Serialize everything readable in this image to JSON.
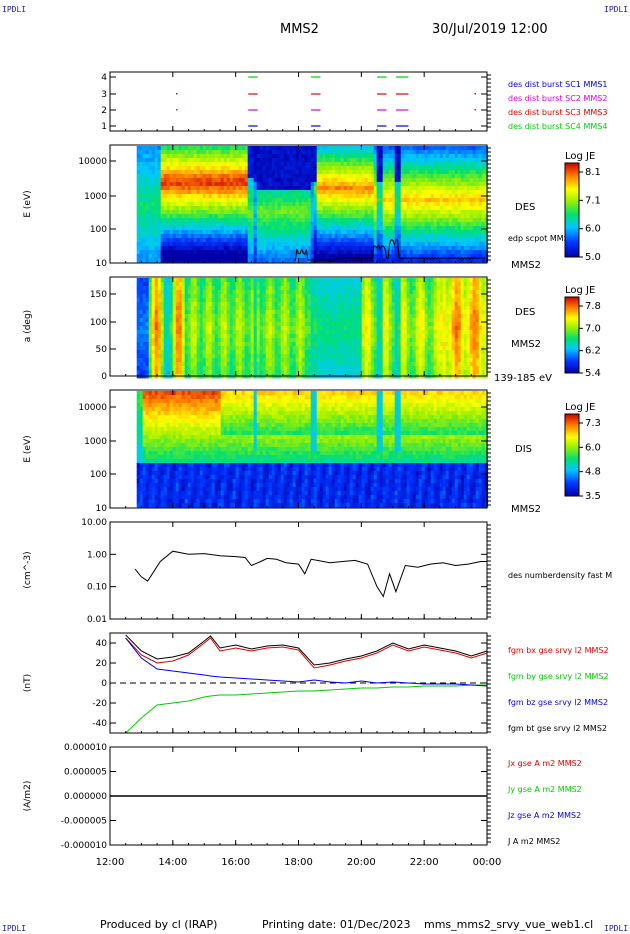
{
  "corner_label": "IPDLI",
  "header": {
    "title": "MMS2",
    "datetime": "30/Jul/2019 12:00"
  },
  "footer": {
    "produced": "Produced by cl (IRAP)",
    "printing": "Printing date: 01/Dec/2023",
    "file": "mms_mms2_srvy_vue_web1.cl"
  },
  "colors": {
    "black": "#000000",
    "red": "#e00000",
    "green": "#00cc00",
    "blue": "#0000ee",
    "magenta": "#e000e0"
  },
  "chart_data": [
    {
      "type": "scatter",
      "panel": "burst",
      "yticks": [
        "4",
        "3",
        "2",
        "1"
      ],
      "legend": [
        {
          "label": "des dist burst SC1 MMS1",
          "color": "#0000ee"
        },
        {
          "label": "des dist burst SC2 MMS2",
          "color": "#e000e0"
        },
        {
          "label": "des dist burst SC3 MMS3",
          "color": "#e00000"
        },
        {
          "label": "des dist burst SC4 MMS4",
          "color": "#00cc00"
        }
      ],
      "segments_hours": [
        [
          16.4,
          16.7
        ],
        [
          18.4,
          18.7
        ],
        [
          20.5,
          20.8
        ],
        [
          21.1,
          21.5
        ]
      ],
      "dots_hours": [
        14.1,
        23.6
      ]
    },
    {
      "type": "heatmap",
      "panel": "des_energy",
      "ylabel": "E (eV)",
      "yticks": [
        "10000",
        "1000",
        "100",
        "10"
      ],
      "instrument": "DES",
      "note": "edp scpot MMS2",
      "spacecraft": "MMS2",
      "colorbar": {
        "title": "Log JE",
        "ticks": [
          "8.1",
          "7.1",
          "6.0",
          "5.0"
        ]
      }
    },
    {
      "type": "heatmap",
      "panel": "des_pitch",
      "ylabel": "a (deg)",
      "yticks": [
        "150",
        "100",
        "50",
        "0"
      ],
      "instrument": "DES",
      "spacecraft": "MMS2",
      "energy_range": "139-185 eV",
      "colorbar": {
        "title": "Log JE",
        "ticks": [
          "7.8",
          "7.0",
          "6.2",
          "5.4"
        ]
      }
    },
    {
      "type": "heatmap",
      "panel": "dis_energy",
      "ylabel": "E (eV)",
      "yticks": [
        "10000",
        "1000",
        "100",
        "10"
      ],
      "instrument": "DIS",
      "spacecraft": "MMS2",
      "colorbar": {
        "title": "Log JE",
        "ticks": [
          "7.3",
          "6.0",
          "4.8",
          "3.5"
        ]
      }
    },
    {
      "type": "line",
      "panel": "density",
      "ylabel": "(cm^-3)",
      "yticks": [
        "10.00",
        "1.00",
        "0.10",
        "0.01"
      ],
      "series": [
        {
          "name": "des numberdensity fast M",
          "color": "#000000"
        }
      ],
      "x_hours": [
        12.8,
        13.0,
        13.2,
        13.4,
        13.6,
        14.0,
        14.5,
        15.0,
        15.5,
        16.0,
        16.3,
        16.5,
        16.8,
        17.0,
        17.3,
        17.6,
        18.0,
        18.2,
        18.4,
        18.6,
        19.0,
        19.4,
        19.8,
        20.2,
        20.5,
        20.7,
        20.9,
        21.1,
        21.4,
        21.8,
        22.2,
        22.6,
        23.0,
        23.4,
        23.8,
        24.0
      ],
      "y_values": [
        0.35,
        0.2,
        0.15,
        0.3,
        0.6,
        1.25,
        1.0,
        1.05,
        0.9,
        0.85,
        0.8,
        0.45,
        0.6,
        0.75,
        0.7,
        0.55,
        0.5,
        0.25,
        0.7,
        0.65,
        0.55,
        0.6,
        0.65,
        0.5,
        0.1,
        0.05,
        0.25,
        0.07,
        0.45,
        0.4,
        0.5,
        0.55,
        0.45,
        0.5,
        0.6,
        0.6
      ]
    },
    {
      "type": "line",
      "panel": "fgm",
      "ylabel": "(nT)",
      "yticks": [
        "40",
        "20",
        "0",
        "-20",
        "-40"
      ],
      "ylim": [
        -50,
        50
      ],
      "x_hours": [
        12.5,
        13.0,
        13.5,
        14.0,
        14.5,
        15.0,
        15.2,
        15.5,
        16.0,
        16.5,
        17.0,
        17.5,
        18.0,
        18.5,
        19.0,
        19.5,
        20.0,
        20.5,
        21.0,
        21.5,
        22.0,
        22.5,
        23.0,
        23.5,
        24.0
      ],
      "series": [
        {
          "name": "fgm bx gse srvy l2 MMS2",
          "color": "#e00000",
          "values": [
            45,
            28,
            20,
            22,
            28,
            40,
            45,
            32,
            35,
            32,
            35,
            36,
            33,
            15,
            18,
            22,
            25,
            30,
            38,
            32,
            36,
            33,
            30,
            25,
            30
          ]
        },
        {
          "name": "fgm by gse srvy l2 MMS2",
          "color": "#00cc00",
          "values": [
            -50,
            -35,
            -22,
            -20,
            -18,
            -14,
            -13,
            -12,
            -12,
            -11,
            -10,
            -9,
            -8,
            -8,
            -7,
            -6,
            -5,
            -5,
            -4,
            -4,
            -3,
            -3,
            -3,
            -2,
            -2
          ]
        },
        {
          "name": "fgm bz gse srvy l2 MMS2",
          "color": "#0000ee",
          "values": [
            45,
            25,
            14,
            12,
            10,
            8,
            7,
            6,
            5,
            4,
            3,
            2,
            1,
            3,
            1,
            0,
            2,
            0,
            1,
            0,
            -1,
            -1,
            -1,
            -2,
            -3
          ]
        },
        {
          "name": "fgm bt gse srvy l2 MMS2",
          "color": "#000000",
          "values": [
            48,
            32,
            24,
            26,
            30,
            42,
            47,
            35,
            38,
            34,
            37,
            38,
            35,
            18,
            20,
            24,
            27,
            32,
            40,
            34,
            38,
            35,
            32,
            27,
            32
          ]
        }
      ]
    },
    {
      "type": "line",
      "panel": "current",
      "ylabel": "(A/m2)",
      "yticks": [
        "0.000010",
        "0.000005",
        "0.000000",
        "-0.000005",
        "-0.000010"
      ],
      "xticks": [
        "12:00",
        "14:00",
        "16:00",
        "18:00",
        "20:00",
        "22:00",
        "00:00"
      ],
      "series": [
        {
          "name": "Jx gse A m2 MMS2",
          "color": "#e00000"
        },
        {
          "name": "Jy gse A m2 MMS2",
          "color": "#00cc00"
        },
        {
          "name": "Jz gse A m2 MMS2",
          "color": "#0000ee"
        },
        {
          "name": "J A m2 MMS2",
          "color": "#000000"
        }
      ]
    }
  ]
}
